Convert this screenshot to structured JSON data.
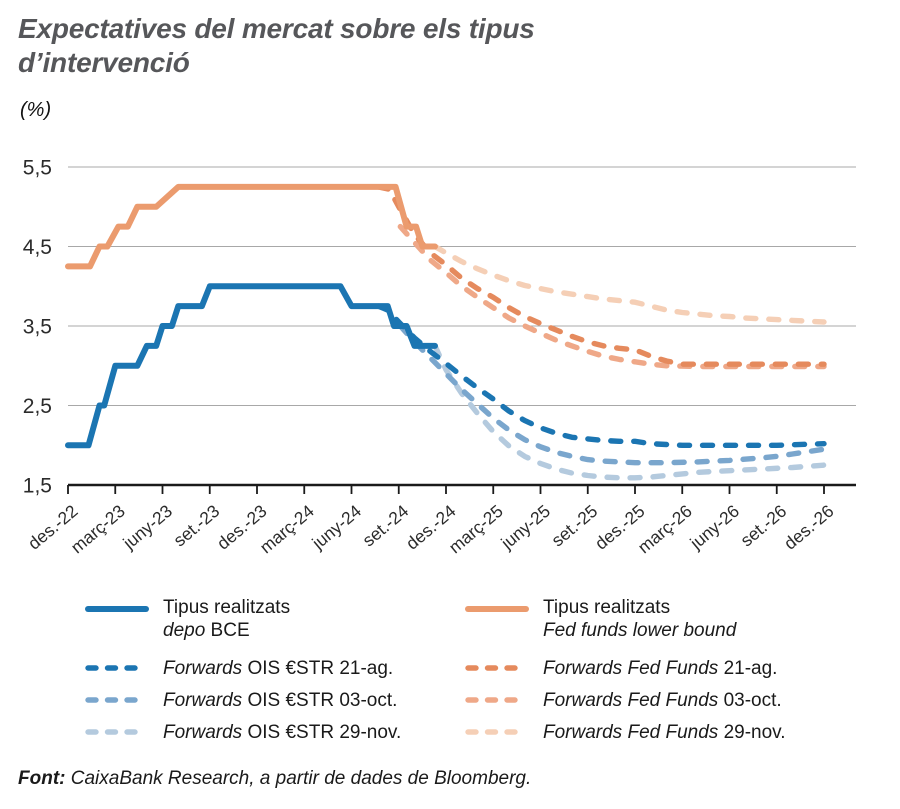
{
  "header": {
    "title_line1": "Expectatives del mercat sobre els tipus",
    "title_line2": "d’intervenció",
    "unit": "(%)"
  },
  "chart_data": {
    "type": "line",
    "title": "Expectatives del mercat sobre els tipus d’intervenció",
    "ylabel": "(%)",
    "xlabel": "",
    "ylim": [
      1.5,
      5.5
    ],
    "grid": true,
    "legend_position": "bottom",
    "x_unit": "months since des.-22 (t=0), quarterly ticks",
    "yticks": [
      {
        "v": 5.5,
        "label": "5,5"
      },
      {
        "v": 4.5,
        "label": "4,5"
      },
      {
        "v": 3.5,
        "label": "3,5"
      },
      {
        "v": 2.5,
        "label": "2,5"
      },
      {
        "v": 1.5,
        "label": "1,5"
      }
    ],
    "xticks": [
      {
        "t": 0,
        "label": "des.-22"
      },
      {
        "t": 3,
        "label": "març-23"
      },
      {
        "t": 6,
        "label": "juny-23"
      },
      {
        "t": 9,
        "label": "set.-23"
      },
      {
        "t": 12,
        "label": "des.-23"
      },
      {
        "t": 15,
        "label": "març-24"
      },
      {
        "t": 18,
        "label": "juny-24"
      },
      {
        "t": 21,
        "label": "set.-24"
      },
      {
        "t": 24,
        "label": "des.-24"
      },
      {
        "t": 27,
        "label": "març-25"
      },
      {
        "t": 30,
        "label": "juny-25"
      },
      {
        "t": 33,
        "label": "set.-25"
      },
      {
        "t": 36,
        "label": "des.-25"
      },
      {
        "t": 39,
        "label": "març-26"
      },
      {
        "t": 42,
        "label": "juny-26"
      },
      {
        "t": 45,
        "label": "set.-26"
      },
      {
        "t": 48,
        "label": "des.-26"
      }
    ],
    "series": [
      {
        "name": "Tipus realitzats depo BCE",
        "color": "#1b75b2",
        "style": "solid",
        "points": [
          [
            0,
            2
          ],
          [
            1.3,
            2
          ],
          [
            2,
            2.5
          ],
          [
            2.3,
            2.5
          ],
          [
            3,
            3
          ],
          [
            4.4,
            3
          ],
          [
            5,
            3.25
          ],
          [
            5.6,
            3.25
          ],
          [
            6,
            3.5
          ],
          [
            6.6,
            3.5
          ],
          [
            7,
            3.75
          ],
          [
            8.5,
            3.75
          ],
          [
            9,
            4
          ],
          [
            17.3,
            4
          ],
          [
            18,
            3.75
          ],
          [
            20.3,
            3.75
          ],
          [
            20.7,
            3.5
          ],
          [
            21.5,
            3.5
          ],
          [
            22,
            3.25
          ],
          [
            23.3,
            3.25
          ]
        ]
      },
      {
        "name": "Tipus realitzats Fed funds lower bound",
        "color": "#eb9b6e",
        "style": "solid",
        "points": [
          [
            0,
            4.25
          ],
          [
            1.4,
            4.25
          ],
          [
            2,
            4.5
          ],
          [
            2.5,
            4.5
          ],
          [
            3.2,
            4.75
          ],
          [
            3.8,
            4.75
          ],
          [
            4.4,
            5
          ],
          [
            5.6,
            5
          ],
          [
            7,
            5.25
          ],
          [
            20.8,
            5.25
          ],
          [
            21.5,
            4.75
          ],
          [
            22.1,
            4.75
          ],
          [
            22.5,
            4.5
          ],
          [
            23.3,
            4.5
          ]
        ]
      },
      {
        "name": "Forwards OIS €STR 21-ag.",
        "color": "#1b75b2",
        "style": "dashed",
        "points": [
          [
            19.7,
            3.75
          ],
          [
            20.3,
            3.7
          ],
          [
            21,
            3.55
          ],
          [
            22,
            3.35
          ],
          [
            23,
            3.18
          ],
          [
            24,
            3.03
          ],
          [
            25,
            2.87
          ],
          [
            26,
            2.72
          ],
          [
            27,
            2.58
          ],
          [
            28,
            2.43
          ],
          [
            29,
            2.31
          ],
          [
            30,
            2.22
          ],
          [
            31,
            2.15
          ],
          [
            32,
            2.1
          ],
          [
            33,
            2.08
          ],
          [
            34,
            2.06
          ],
          [
            35,
            2.05
          ],
          [
            36,
            2.05
          ],
          [
            37,
            2.02
          ],
          [
            38,
            2.01
          ],
          [
            39,
            2
          ],
          [
            42,
            2
          ],
          [
            45,
            2
          ],
          [
            48,
            2.02
          ]
        ]
      },
      {
        "name": "Forwards OIS €STR 03-oct.",
        "color": "#7aa6cd",
        "style": "dashed",
        "points": [
          [
            21.1,
            3.5
          ],
          [
            22,
            3.3
          ],
          [
            23,
            3.1
          ],
          [
            24,
            2.9
          ],
          [
            25,
            2.7
          ],
          [
            26,
            2.52
          ],
          [
            27,
            2.34
          ],
          [
            28,
            2.19
          ],
          [
            29,
            2.07
          ],
          [
            30,
            1.98
          ],
          [
            31,
            1.91
          ],
          [
            32,
            1.86
          ],
          [
            33,
            1.82
          ],
          [
            34,
            1.8
          ],
          [
            35,
            1.79
          ],
          [
            36,
            1.78
          ],
          [
            38,
            1.78
          ],
          [
            40,
            1.79
          ],
          [
            42,
            1.81
          ],
          [
            44,
            1.84
          ],
          [
            45,
            1.86
          ],
          [
            46,
            1.89
          ],
          [
            47,
            1.92
          ],
          [
            48,
            1.95
          ]
        ]
      },
      {
        "name": "Forwards OIS €STR 29-nov.",
        "color": "#b4cade",
        "style": "dashed",
        "points": [
          [
            23.3,
            3.25
          ],
          [
            24,
            2.95
          ],
          [
            25,
            2.65
          ],
          [
            26,
            2.4
          ],
          [
            27,
            2.17
          ],
          [
            28,
            1.99
          ],
          [
            29,
            1.86
          ],
          [
            30,
            1.77
          ],
          [
            31,
            1.7
          ],
          [
            32,
            1.65
          ],
          [
            33,
            1.62
          ],
          [
            34,
            1.6
          ],
          [
            35,
            1.59
          ],
          [
            36,
            1.59
          ],
          [
            37,
            1.6
          ],
          [
            38,
            1.62
          ],
          [
            39,
            1.64
          ],
          [
            40,
            1.66
          ],
          [
            42,
            1.68
          ],
          [
            44,
            1.7
          ],
          [
            46,
            1.72
          ],
          [
            48,
            1.75
          ]
        ]
      },
      {
        "name": "Forwards Fed Funds 21-ag.",
        "color": "#e58a5d",
        "style": "dashed",
        "points": [
          [
            19.7,
            5.25
          ],
          [
            20.4,
            5.22
          ],
          [
            21,
            5
          ],
          [
            22,
            4.65
          ],
          [
            23,
            4.42
          ],
          [
            24,
            4.27
          ],
          [
            25,
            4.1
          ],
          [
            26,
            3.97
          ],
          [
            27,
            3.86
          ],
          [
            28,
            3.73
          ],
          [
            29,
            3.62
          ],
          [
            30,
            3.53
          ],
          [
            31,
            3.45
          ],
          [
            32,
            3.37
          ],
          [
            33,
            3.3
          ],
          [
            34,
            3.25
          ],
          [
            35,
            3.22
          ],
          [
            36,
            3.2
          ],
          [
            37,
            3.12
          ],
          [
            38,
            3.06
          ],
          [
            39,
            3.02
          ],
          [
            40,
            3.02
          ],
          [
            44,
            3.02
          ],
          [
            48,
            3.02
          ]
        ]
      },
      {
        "name": "Forwards Fed Funds 03-oct.",
        "color": "#efa888",
        "style": "dashed",
        "points": [
          [
            21.1,
            4.75
          ],
          [
            22,
            4.55
          ],
          [
            23,
            4.33
          ],
          [
            24,
            4.17
          ],
          [
            25,
            4
          ],
          [
            26,
            3.86
          ],
          [
            27,
            3.73
          ],
          [
            28,
            3.6
          ],
          [
            29,
            3.5
          ],
          [
            30,
            3.41
          ],
          [
            31,
            3.32
          ],
          [
            32,
            3.25
          ],
          [
            33,
            3.18
          ],
          [
            34,
            3.12
          ],
          [
            35,
            3.08
          ],
          [
            36,
            3.05
          ],
          [
            37,
            3.02
          ],
          [
            38,
            3
          ],
          [
            40,
            2.99
          ],
          [
            44,
            2.99
          ],
          [
            48,
            2.99
          ]
        ]
      },
      {
        "name": "Forwards Fed Funds 29-nov.",
        "color": "#f5cfb6",
        "style": "dashed",
        "points": [
          [
            23.3,
            4.5
          ],
          [
            24,
            4.42
          ],
          [
            25,
            4.31
          ],
          [
            26,
            4.22
          ],
          [
            27,
            4.14
          ],
          [
            28,
            4.07
          ],
          [
            29,
            4.01
          ],
          [
            30,
            3.97
          ],
          [
            31,
            3.93
          ],
          [
            32,
            3.9
          ],
          [
            33,
            3.87
          ],
          [
            34,
            3.84
          ],
          [
            35,
            3.82
          ],
          [
            36,
            3.8
          ],
          [
            37,
            3.75
          ],
          [
            38,
            3.7
          ],
          [
            39,
            3.67
          ],
          [
            40,
            3.65
          ],
          [
            41,
            3.63
          ],
          [
            42,
            3.62
          ],
          [
            43,
            3.6
          ],
          [
            44,
            3.59
          ],
          [
            45,
            3.58
          ],
          [
            46,
            3.57
          ],
          [
            47,
            3.56
          ],
          [
            48,
            3.55
          ]
        ]
      }
    ],
    "draw_order": [
      7,
      6,
      5,
      4,
      3,
      2,
      1,
      0
    ]
  },
  "legend": {
    "left": [
      {
        "series": 0,
        "i1": "",
        "r1": "Tipus realitzats",
        "i2": "depo",
        "r2": " BCE"
      },
      {
        "series": 2,
        "i1": "Forwards",
        "r1": " OIS €STR 21-ag."
      },
      {
        "series": 3,
        "i1": "Forwards",
        "r1": " OIS €STR 03-oct."
      },
      {
        "series": 4,
        "i1": "Forwards",
        "r1": " OIS €STR 29-nov."
      }
    ],
    "right": [
      {
        "series": 1,
        "i1": "",
        "r1": "Tipus realitzats",
        "i2": "Fed funds lower bound",
        "r2": ""
      },
      {
        "series": 5,
        "i1": "Forwards Fed Funds",
        "r1": " 21-ag."
      },
      {
        "series": 6,
        "i1": "Forwards Fed Funds",
        "r1": " 03-oct."
      },
      {
        "series": 7,
        "i1": "Forwards Fed Funds",
        "r1": " 29-nov."
      }
    ]
  },
  "footer": {
    "label": "Font:",
    "text": " CaixaBank Research, a partir de dades de Bloomberg."
  }
}
